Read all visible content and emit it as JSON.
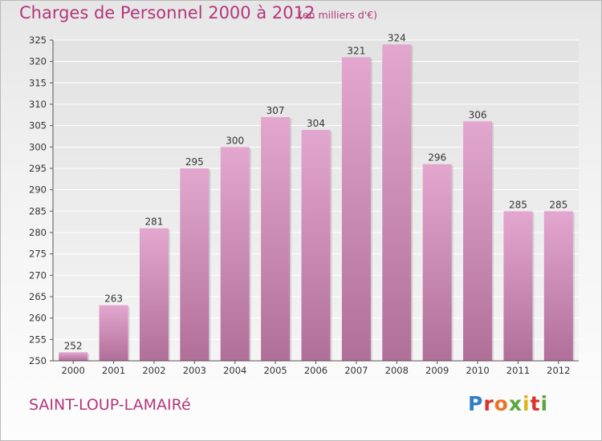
{
  "header": {
    "title": "Charges de Personnel 2000 à 2012",
    "unit": "(en milliers d'€)"
  },
  "footer": {
    "commune": "SAINT-LOUP-LAMAIRé",
    "logo_text": "Proxiti"
  },
  "colors": {
    "title": "#b2377c",
    "bar_top": "#e3a7cf",
    "bar_bottom": "#b06f98"
  },
  "chart_data": {
    "type": "bar",
    "title": "Charges de Personnel 2000 à 2012",
    "subtitle": "(en milliers d'€)",
    "xlabel": "",
    "ylabel": "",
    "categories": [
      "2000",
      "2001",
      "2002",
      "2003",
      "2004",
      "2005",
      "2006",
      "2007",
      "2008",
      "2009",
      "2010",
      "2011",
      "2012"
    ],
    "values": [
      252,
      263,
      281,
      295,
      300,
      307,
      304,
      321,
      324,
      296,
      306,
      285,
      285
    ],
    "ylim": [
      250,
      325
    ],
    "yticks": [
      250,
      255,
      260,
      265,
      270,
      275,
      280,
      285,
      290,
      295,
      300,
      305,
      310,
      315,
      320,
      325
    ],
    "grid": true,
    "legend": "none"
  }
}
